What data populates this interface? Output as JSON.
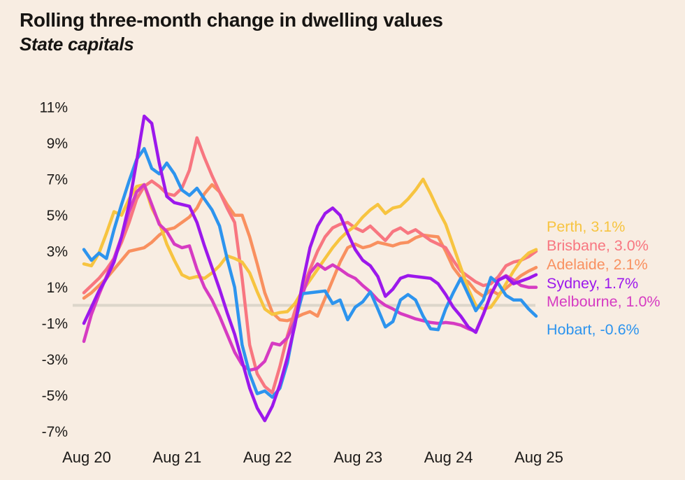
{
  "header": {
    "title": "Rolling three-month change in dwelling values",
    "subtitle": "State capitals"
  },
  "chart_data": {
    "type": "line",
    "title": "Rolling three-month change in dwelling values",
    "subtitle": "State capitals",
    "x_ticklabels": [
      "Aug 20",
      "Aug 21",
      "Aug 22",
      "Aug 23",
      "Aug 24",
      "Aug 25"
    ],
    "x_range": [
      "Aug 2020",
      "Aug 2025"
    ],
    "points_per_series": 61,
    "x_frequency": "monthly",
    "y_ticks": [
      11,
      9,
      7,
      5,
      3,
      1,
      -1,
      -3,
      -5,
      -7
    ],
    "y_tick_suffix": "%",
    "ylim": [
      -7.5,
      11.5
    ],
    "grid": false,
    "zero_line": true,
    "legend_position": "right",
    "colors": {
      "background": "#F8EDE2",
      "text": "#1c1a18",
      "zero_line": "#DCD6CA"
    },
    "series": [
      {
        "name": "Perth",
        "legend_label": "Perth, 3.1%",
        "final_value": 3.1,
        "color": "#F7C440",
        "values": [
          2.3,
          2.2,
          2.9,
          4.0,
          5.2,
          5.0,
          5.9,
          6.6,
          6.7,
          5.4,
          4.6,
          3.4,
          2.5,
          1.7,
          1.5,
          1.6,
          1.5,
          1.8,
          2.2,
          2.75,
          2.6,
          2.4,
          1.8,
          0.75,
          -0.2,
          -0.5,
          -0.4,
          -0.35,
          0.1,
          0.8,
          1.4,
          2.0,
          2.6,
          3.2,
          3.7,
          4.1,
          4.4,
          4.9,
          5.3,
          5.6,
          5.1,
          5.4,
          5.5,
          5.9,
          6.4,
          7.0,
          6.2,
          5.3,
          4.5,
          3.3,
          2.1,
          0.9,
          0.0,
          -0.2,
          -0.1,
          0.5,
          1.2,
          1.9,
          2.5,
          2.9,
          3.1
        ]
      },
      {
        "name": "Brisbane",
        "legend_label": "Brisbane, 3.0%",
        "final_value": 3.0,
        "color": "#F87680",
        "values": [
          0.7,
          1.1,
          1.5,
          2.0,
          2.6,
          3.5,
          4.6,
          5.9,
          6.6,
          6.9,
          6.6,
          6.2,
          6.1,
          6.5,
          7.5,
          9.3,
          8.2,
          7.2,
          6.3,
          5.4,
          4.6,
          1.5,
          -2.2,
          -3.8,
          -4.5,
          -4.85,
          -3.4,
          -1.7,
          -0.3,
          0.9,
          2.0,
          3.0,
          3.8,
          4.3,
          4.5,
          4.6,
          4.3,
          4.1,
          4.4,
          4.0,
          3.6,
          4.1,
          4.3,
          4.0,
          4.2,
          3.9,
          3.6,
          3.4,
          3.2,
          2.5,
          1.9,
          1.6,
          1.3,
          1.1,
          1.2,
          1.6,
          2.2,
          2.4,
          2.5,
          2.7,
          3.0
        ]
      },
      {
        "name": "Adelaide",
        "legend_label": "Adelaide, 2.1%",
        "final_value": 2.1,
        "color": "#F9905F",
        "values": [
          0.4,
          0.7,
          1.1,
          1.5,
          2.0,
          2.5,
          3.0,
          3.1,
          3.2,
          3.5,
          3.9,
          4.2,
          4.3,
          4.6,
          4.9,
          5.4,
          6.2,
          6.7,
          6.3,
          5.6,
          5.0,
          5.0,
          3.8,
          2.3,
          0.7,
          -0.4,
          -0.8,
          -0.85,
          -0.7,
          -0.5,
          -0.35,
          -0.6,
          0.4,
          1.4,
          2.4,
          3.2,
          3.4,
          3.2,
          3.3,
          3.5,
          3.4,
          3.3,
          3.45,
          3.5,
          3.75,
          3.9,
          3.85,
          3.8,
          3.0,
          2.1,
          1.55,
          1.3,
          0.8,
          0.5,
          0.85,
          0.6,
          0.95,
          1.3,
          1.65,
          1.9,
          2.1
        ]
      },
      {
        "name": "Sydney",
        "legend_label": "Sydney, 1.7%",
        "final_value": 1.7,
        "color": "#9C18EC",
        "values": [
          -1.0,
          -0.1,
          0.8,
          1.5,
          2.4,
          3.8,
          5.6,
          8.0,
          10.5,
          10.1,
          7.9,
          6.05,
          5.7,
          5.6,
          5.5,
          4.6,
          3.3,
          2.1,
          0.9,
          -0.4,
          -1.6,
          -3.1,
          -4.6,
          -5.7,
          -6.4,
          -5.6,
          -4.4,
          -2.9,
          -1.1,
          1.2,
          3.2,
          4.4,
          5.1,
          5.4,
          5.0,
          4.0,
          3.1,
          2.5,
          2.2,
          1.6,
          0.5,
          0.9,
          1.5,
          1.65,
          1.6,
          1.55,
          1.5,
          1.2,
          0.6,
          -0.1,
          -0.6,
          -1.2,
          -1.5,
          -0.5,
          0.6,
          1.4,
          1.6,
          1.2,
          1.35,
          1.5,
          1.7
        ]
      },
      {
        "name": "Melbourne",
        "legend_label": "Melbourne, 1.0%",
        "final_value": 1.0,
        "color": "#D63BC2",
        "values": [
          -2.0,
          -0.5,
          0.6,
          1.6,
          2.6,
          3.8,
          5.2,
          6.3,
          6.7,
          5.6,
          4.5,
          4.1,
          3.4,
          3.2,
          3.3,
          2.0,
          1.0,
          0.3,
          -0.6,
          -1.6,
          -2.6,
          -3.3,
          -3.6,
          -3.5,
          -3.1,
          -2.1,
          -2.2,
          -1.8,
          -0.9,
          0.6,
          1.8,
          2.3,
          2.0,
          2.25,
          2.0,
          1.7,
          1.5,
          1.1,
          0.75,
          0.3,
          0.0,
          -0.2,
          -0.45,
          -0.6,
          -0.75,
          -0.85,
          -0.95,
          -1.0,
          -0.95,
          -1.0,
          -1.1,
          -1.3,
          -1.45,
          -0.5,
          0.6,
          1.4,
          1.65,
          1.4,
          1.1,
          1.0,
          1.0
        ]
      },
      {
        "name": "Hobart",
        "legend_label": "Hobart, -0.6%",
        "final_value": -0.6,
        "color": "#2D94EE",
        "values": [
          3.1,
          2.5,
          2.9,
          2.6,
          4.2,
          5.6,
          6.9,
          8.1,
          8.7,
          7.6,
          7.3,
          7.9,
          7.3,
          6.4,
          6.1,
          6.5,
          5.9,
          5.3,
          4.4,
          2.6,
          1.0,
          -2.2,
          -3.8,
          -4.9,
          -4.75,
          -5.1,
          -4.6,
          -3.2,
          -1.0,
          0.65,
          0.7,
          0.75,
          0.8,
          0.1,
          0.3,
          -0.8,
          -0.1,
          0.2,
          0.75,
          -0.2,
          -1.2,
          -0.9,
          0.3,
          0.6,
          0.3,
          -0.6,
          -1.3,
          -1.35,
          -0.2,
          0.7,
          1.5,
          0.6,
          -0.3,
          0.3,
          1.55,
          1.2,
          0.55,
          0.3,
          0.3,
          -0.2,
          -0.6
        ]
      }
    ]
  }
}
